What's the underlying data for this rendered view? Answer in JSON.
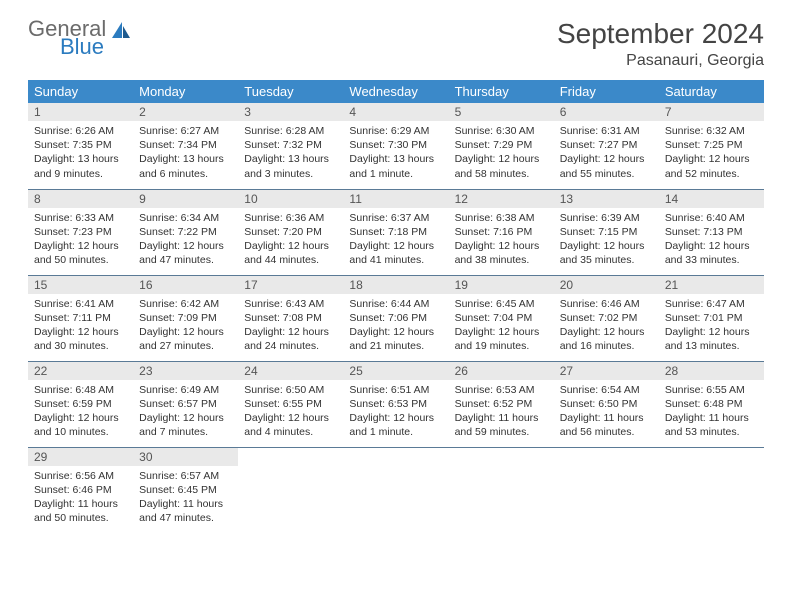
{
  "logo": {
    "general": "General",
    "blue": "Blue"
  },
  "title": "September 2024",
  "location": "Pasanauri, Georgia",
  "weekdays": [
    "Sunday",
    "Monday",
    "Tuesday",
    "Wednesday",
    "Thursday",
    "Friday",
    "Saturday"
  ],
  "colors": {
    "header_bg": "#3b89c9",
    "daynum_bg": "#e9e9e9",
    "row_border": "#5a7a96",
    "logo_gray": "#6b6b6b",
    "logo_blue": "#2b7bbf"
  },
  "days": [
    {
      "n": "1",
      "sunrise": "Sunrise: 6:26 AM",
      "sunset": "Sunset: 7:35 PM",
      "daylight": "Daylight: 13 hours and 9 minutes."
    },
    {
      "n": "2",
      "sunrise": "Sunrise: 6:27 AM",
      "sunset": "Sunset: 7:34 PM",
      "daylight": "Daylight: 13 hours and 6 minutes."
    },
    {
      "n": "3",
      "sunrise": "Sunrise: 6:28 AM",
      "sunset": "Sunset: 7:32 PM",
      "daylight": "Daylight: 13 hours and 3 minutes."
    },
    {
      "n": "4",
      "sunrise": "Sunrise: 6:29 AM",
      "sunset": "Sunset: 7:30 PM",
      "daylight": "Daylight: 13 hours and 1 minute."
    },
    {
      "n": "5",
      "sunrise": "Sunrise: 6:30 AM",
      "sunset": "Sunset: 7:29 PM",
      "daylight": "Daylight: 12 hours and 58 minutes."
    },
    {
      "n": "6",
      "sunrise": "Sunrise: 6:31 AM",
      "sunset": "Sunset: 7:27 PM",
      "daylight": "Daylight: 12 hours and 55 minutes."
    },
    {
      "n": "7",
      "sunrise": "Sunrise: 6:32 AM",
      "sunset": "Sunset: 7:25 PM",
      "daylight": "Daylight: 12 hours and 52 minutes."
    },
    {
      "n": "8",
      "sunrise": "Sunrise: 6:33 AM",
      "sunset": "Sunset: 7:23 PM",
      "daylight": "Daylight: 12 hours and 50 minutes."
    },
    {
      "n": "9",
      "sunrise": "Sunrise: 6:34 AM",
      "sunset": "Sunset: 7:22 PM",
      "daylight": "Daylight: 12 hours and 47 minutes."
    },
    {
      "n": "10",
      "sunrise": "Sunrise: 6:36 AM",
      "sunset": "Sunset: 7:20 PM",
      "daylight": "Daylight: 12 hours and 44 minutes."
    },
    {
      "n": "11",
      "sunrise": "Sunrise: 6:37 AM",
      "sunset": "Sunset: 7:18 PM",
      "daylight": "Daylight: 12 hours and 41 minutes."
    },
    {
      "n": "12",
      "sunrise": "Sunrise: 6:38 AM",
      "sunset": "Sunset: 7:16 PM",
      "daylight": "Daylight: 12 hours and 38 minutes."
    },
    {
      "n": "13",
      "sunrise": "Sunrise: 6:39 AM",
      "sunset": "Sunset: 7:15 PM",
      "daylight": "Daylight: 12 hours and 35 minutes."
    },
    {
      "n": "14",
      "sunrise": "Sunrise: 6:40 AM",
      "sunset": "Sunset: 7:13 PM",
      "daylight": "Daylight: 12 hours and 33 minutes."
    },
    {
      "n": "15",
      "sunrise": "Sunrise: 6:41 AM",
      "sunset": "Sunset: 7:11 PM",
      "daylight": "Daylight: 12 hours and 30 minutes."
    },
    {
      "n": "16",
      "sunrise": "Sunrise: 6:42 AM",
      "sunset": "Sunset: 7:09 PM",
      "daylight": "Daylight: 12 hours and 27 minutes."
    },
    {
      "n": "17",
      "sunrise": "Sunrise: 6:43 AM",
      "sunset": "Sunset: 7:08 PM",
      "daylight": "Daylight: 12 hours and 24 minutes."
    },
    {
      "n": "18",
      "sunrise": "Sunrise: 6:44 AM",
      "sunset": "Sunset: 7:06 PM",
      "daylight": "Daylight: 12 hours and 21 minutes."
    },
    {
      "n": "19",
      "sunrise": "Sunrise: 6:45 AM",
      "sunset": "Sunset: 7:04 PM",
      "daylight": "Daylight: 12 hours and 19 minutes."
    },
    {
      "n": "20",
      "sunrise": "Sunrise: 6:46 AM",
      "sunset": "Sunset: 7:02 PM",
      "daylight": "Daylight: 12 hours and 16 minutes."
    },
    {
      "n": "21",
      "sunrise": "Sunrise: 6:47 AM",
      "sunset": "Sunset: 7:01 PM",
      "daylight": "Daylight: 12 hours and 13 minutes."
    },
    {
      "n": "22",
      "sunrise": "Sunrise: 6:48 AM",
      "sunset": "Sunset: 6:59 PM",
      "daylight": "Daylight: 12 hours and 10 minutes."
    },
    {
      "n": "23",
      "sunrise": "Sunrise: 6:49 AM",
      "sunset": "Sunset: 6:57 PM",
      "daylight": "Daylight: 12 hours and 7 minutes."
    },
    {
      "n": "24",
      "sunrise": "Sunrise: 6:50 AM",
      "sunset": "Sunset: 6:55 PM",
      "daylight": "Daylight: 12 hours and 4 minutes."
    },
    {
      "n": "25",
      "sunrise": "Sunrise: 6:51 AM",
      "sunset": "Sunset: 6:53 PM",
      "daylight": "Daylight: 12 hours and 1 minute."
    },
    {
      "n": "26",
      "sunrise": "Sunrise: 6:53 AM",
      "sunset": "Sunset: 6:52 PM",
      "daylight": "Daylight: 11 hours and 59 minutes."
    },
    {
      "n": "27",
      "sunrise": "Sunrise: 6:54 AM",
      "sunset": "Sunset: 6:50 PM",
      "daylight": "Daylight: 11 hours and 56 minutes."
    },
    {
      "n": "28",
      "sunrise": "Sunrise: 6:55 AM",
      "sunset": "Sunset: 6:48 PM",
      "daylight": "Daylight: 11 hours and 53 minutes."
    },
    {
      "n": "29",
      "sunrise": "Sunrise: 6:56 AM",
      "sunset": "Sunset: 6:46 PM",
      "daylight": "Daylight: 11 hours and 50 minutes."
    },
    {
      "n": "30",
      "sunrise": "Sunrise: 6:57 AM",
      "sunset": "Sunset: 6:45 PM",
      "daylight": "Daylight: 11 hours and 47 minutes."
    }
  ]
}
